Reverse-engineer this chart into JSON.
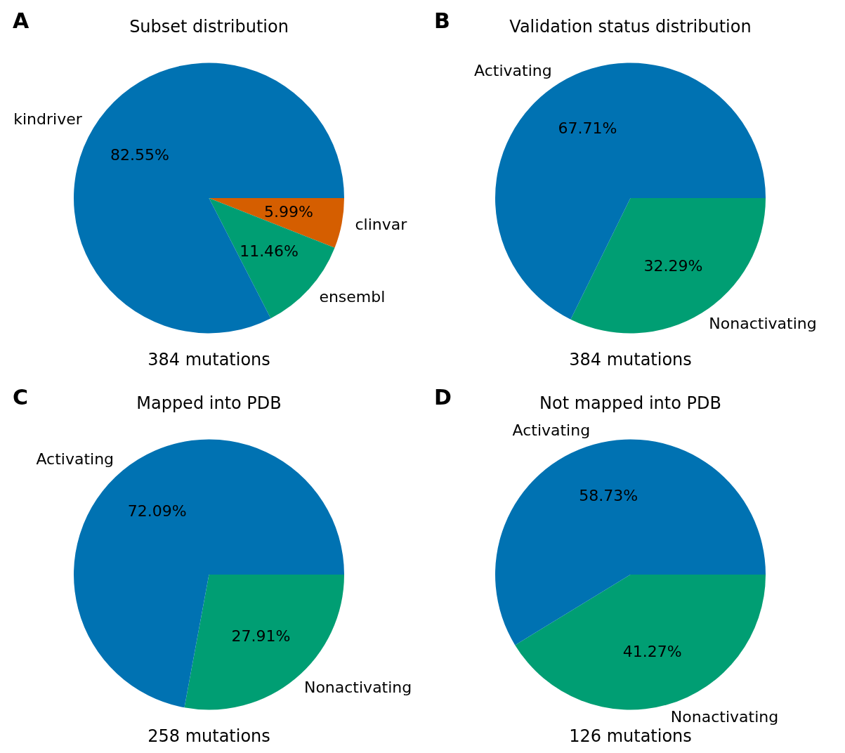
{
  "chart_data": [
    {
      "type": "pie",
      "title": "Subset distribution",
      "xlabel": "384 mutations",
      "annotations": [
        "A"
      ],
      "categories": [
        "kindriver",
        "ensembl",
        "clinvar"
      ],
      "values": [
        82.55,
        11.46,
        5.99
      ],
      "value_labels": [
        "82.55%",
        "11.46%",
        "5.99%"
      ],
      "colors": [
        "#0072b2",
        "#009e73",
        "#d55e00"
      ],
      "legend": false
    },
    {
      "type": "pie",
      "title": "Validation status distribution",
      "xlabel": "384 mutations",
      "annotations": [
        "B"
      ],
      "categories": [
        "Activating",
        "Nonactivating"
      ],
      "values": [
        67.71,
        32.29
      ],
      "value_labels": [
        "67.71%",
        "32.29%"
      ],
      "colors": [
        "#0072b2",
        "#009e73"
      ],
      "legend": false
    },
    {
      "type": "pie",
      "title": "Mapped into PDB",
      "xlabel": "258 mutations",
      "annotations": [
        "C"
      ],
      "categories": [
        "Activating",
        "Nonactivating"
      ],
      "values": [
        72.09,
        27.91
      ],
      "value_labels": [
        "72.09%",
        "27.91%"
      ],
      "colors": [
        "#0072b2",
        "#009e73"
      ],
      "legend": false
    },
    {
      "type": "pie",
      "title": "Not mapped into PDB",
      "xlabel": "126 mutations",
      "annotations": [
        "D"
      ],
      "categories": [
        "Activating",
        "Nonactivating"
      ],
      "values": [
        58.73,
        41.27
      ],
      "value_labels": [
        "58.73%",
        "41.27%"
      ],
      "colors": [
        "#0072b2",
        "#009e73"
      ],
      "legend": false
    }
  ]
}
